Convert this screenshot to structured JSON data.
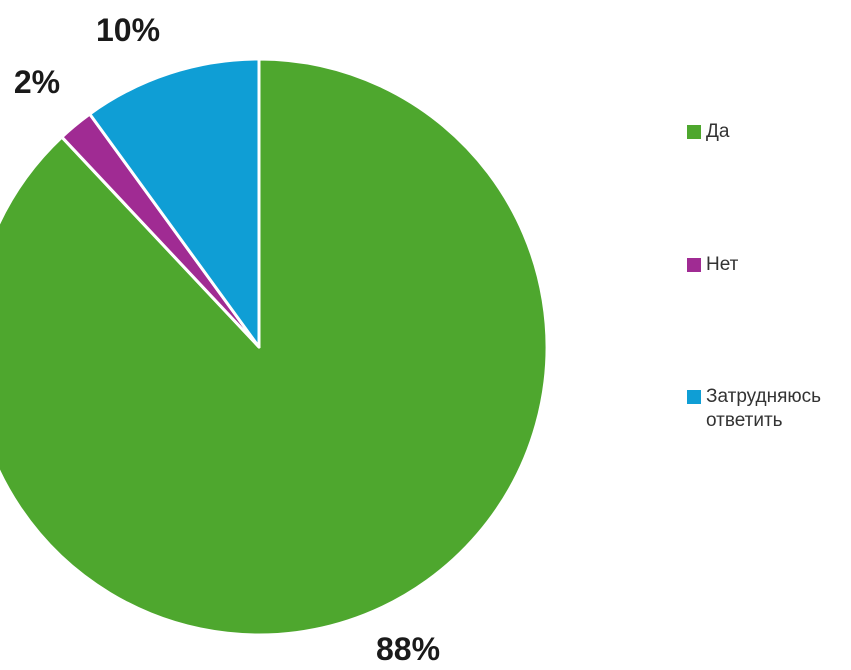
{
  "chart_data": {
    "type": "pie",
    "title": "",
    "slices": [
      {
        "label": "Да",
        "value": 88,
        "display": "88%",
        "color": "#4ea72e"
      },
      {
        "label": "Нет",
        "value": 2,
        "display": "2%",
        "color": "#a02b93"
      },
      {
        "label": "Затрудняюсь ответить",
        "value": 10,
        "display": "10%",
        "color": "#0f9ed5"
      }
    ],
    "legend_position": "right",
    "start_angle": "12 o'clock, clockwise"
  }
}
